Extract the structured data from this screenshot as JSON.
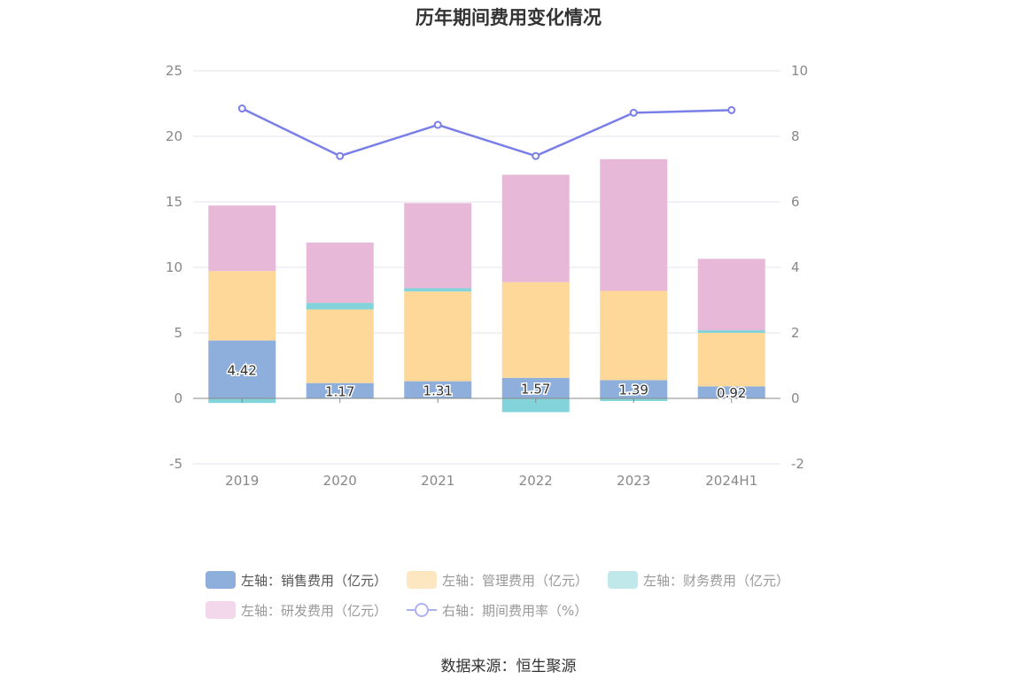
{
  "title": "历年期间费用变化情况",
  "source": "数据来源：恒生聚源",
  "colors": {
    "sales": "#8eaedc",
    "admin": "#fdd899",
    "finance": "#82d4da",
    "rnd": "#e8b8d8",
    "rate": "#7a7fe8"
  },
  "legend": [
    {
      "label": "左轴：销售费用（亿元）",
      "color": "#8eaedc",
      "kind": "bar"
    },
    {
      "label": "左轴：管理费用（亿元）",
      "color": "#fde7c0",
      "kind": "bar"
    },
    {
      "label": "左轴：财务费用（亿元）",
      "color": "#c0e8ea",
      "kind": "bar"
    },
    {
      "label": "左轴：研发费用（亿元）",
      "color": "#f2d8ea",
      "kind": "bar"
    },
    {
      "label": "右轴：期间费用率（%）",
      "color": "#aeb1f0",
      "kind": "line"
    }
  ],
  "chart_data": {
    "type": "bar",
    "stacked": true,
    "categories": [
      "2019",
      "2020",
      "2021",
      "2022",
      "2023",
      "2024H1"
    ],
    "series": [
      {
        "name": "左轴：销售费用（亿元）",
        "axis": "left",
        "color": "#8eaedc",
        "values": [
          4.42,
          1.17,
          1.31,
          1.57,
          1.39,
          0.92
        ],
        "labels": [
          "4.42",
          "1.17",
          "1.31",
          "1.57",
          "1.39",
          "0.92"
        ]
      },
      {
        "name": "左轴：管理费用（亿元）",
        "axis": "left",
        "color": "#fdd899",
        "values": [
          5.3,
          5.62,
          6.85,
          7.3,
          6.82,
          4.08
        ]
      },
      {
        "name": "左轴：财务费用（亿元）",
        "axis": "left",
        "color": "#82d4da",
        "values": [
          -0.35,
          0.5,
          0.25,
          -1.05,
          -0.2,
          0.2
        ]
      },
      {
        "name": "左轴：研发费用（亿元）",
        "axis": "left",
        "color": "#e8b8d8",
        "values": [
          5.0,
          4.6,
          6.5,
          8.2,
          10.05,
          5.45
        ]
      },
      {
        "name": "右轴：期间费用率（%）",
        "axis": "right",
        "type": "line",
        "color": "#7a7fe8",
        "values": [
          8.85,
          7.4,
          8.35,
          7.4,
          8.72,
          8.8
        ]
      }
    ],
    "y_left": {
      "min": -5,
      "max": 25,
      "ticks": [
        "-5",
        "0",
        "5",
        "10",
        "15",
        "20",
        "25"
      ]
    },
    "y_right": {
      "min": -2,
      "max": 10,
      "ticks": [
        "-2",
        "0",
        "2",
        "4",
        "6",
        "8",
        "10"
      ]
    },
    "grid": true,
    "legend_position": "bottom"
  }
}
